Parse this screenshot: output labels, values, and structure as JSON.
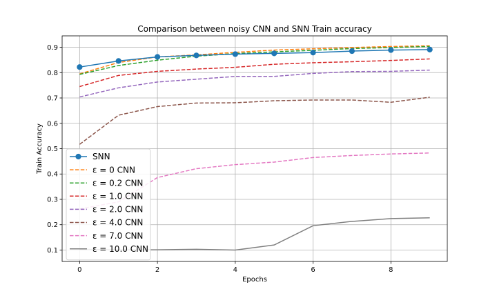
{
  "chart_data": {
    "type": "line",
    "title": "Comparison between noisy CNN and SNN Train accuracy",
    "xlabel": "Epochs",
    "ylabel": "Train Accuracy",
    "xlim": [
      -0.45,
      9.45
    ],
    "ylim": [
      0.055,
      0.945
    ],
    "xticks": [
      0,
      2,
      4,
      6,
      8
    ],
    "yticks": [
      0.1,
      0.2,
      0.3,
      0.4,
      0.5,
      0.6,
      0.7,
      0.8,
      0.9
    ],
    "grid": true,
    "legend_position": "lower-left",
    "x": [
      0,
      1,
      2,
      3,
      4,
      5,
      6,
      7,
      8,
      9
    ],
    "series": [
      {
        "name": "SNN",
        "color": "#1f77b4",
        "style": "solid",
        "marker": "circle",
        "values": [
          0.822,
          0.846,
          0.862,
          0.868,
          0.873,
          0.876,
          0.879,
          0.885,
          0.889,
          0.891
        ]
      },
      {
        "name": "ε = 0 CNN",
        "color": "#ff7f0e",
        "style": "dashed",
        "marker": "none",
        "values": [
          0.795,
          0.84,
          0.862,
          0.87,
          0.88,
          0.889,
          0.894,
          0.899,
          0.903,
          0.906
        ]
      },
      {
        "name": "ε = 0.2 CNN",
        "color": "#2ca02c",
        "style": "dashed",
        "marker": "none",
        "values": [
          0.793,
          0.828,
          0.849,
          0.865,
          0.875,
          0.882,
          0.888,
          0.895,
          0.899,
          0.903
        ]
      },
      {
        "name": "ε = 1.0 CNN",
        "color": "#d62728",
        "style": "dashed",
        "marker": "none",
        "values": [
          0.745,
          0.789,
          0.805,
          0.814,
          0.821,
          0.833,
          0.839,
          0.843,
          0.848,
          0.854
        ]
      },
      {
        "name": "ε = 2.0 CNN",
        "color": "#9467bd",
        "style": "dashed",
        "marker": "none",
        "values": [
          0.704,
          0.74,
          0.763,
          0.774,
          0.785,
          0.785,
          0.797,
          0.804,
          0.805,
          0.81
        ]
      },
      {
        "name": "ε = 4.0 CNN",
        "color": "#8c564b",
        "style": "dashed",
        "marker": "none",
        "values": [
          0.517,
          0.632,
          0.666,
          0.68,
          0.681,
          0.689,
          0.692,
          0.692,
          0.683,
          0.703
        ]
      },
      {
        "name": "ε = 7.0 CNN",
        "color": "#e377c2",
        "style": "dashed",
        "marker": "none",
        "values": [
          0.262,
          0.29,
          0.386,
          0.421,
          0.437,
          0.447,
          0.465,
          0.473,
          0.479,
          0.483
        ]
      },
      {
        "name": "ε = 10.0 CNN",
        "color": "#7f7f7f",
        "style": "solid",
        "marker": "none",
        "values": [
          0.103,
          0.101,
          0.101,
          0.103,
          0.1,
          0.12,
          0.196,
          0.213,
          0.224,
          0.227
        ]
      }
    ]
  }
}
